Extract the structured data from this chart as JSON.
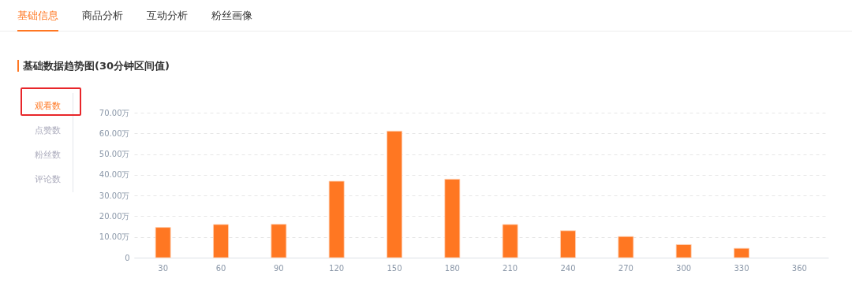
{
  "chart_data": {
    "type": "bar",
    "title": "基础数据趋势图(30分钟区间值)",
    "categories": [
      "30",
      "60",
      "90",
      "120",
      "150",
      "180",
      "210",
      "240",
      "270",
      "300",
      "330",
      "360"
    ],
    "values": [
      14.6,
      16.0,
      16.1,
      36.9,
      61.1,
      37.9,
      16.0,
      13.0,
      10.2,
      6.3,
      4.5,
      null
    ],
    "color": "#ff7722",
    "ylim": [
      0,
      70
    ],
    "yticks": [
      0,
      {
        "value": 10,
        "label": "10.00万"
      },
      {
        "value": 20,
        "label": "20.00万"
      },
      {
        "value": 30,
        "label": "30.00万"
      },
      {
        "value": 40,
        "label": "40.00万"
      },
      {
        "value": 50,
        "label": "50.00万"
      },
      {
        "value": 60,
        "label": "60.00万"
      },
      {
        "value": 70,
        "label": "70.00万"
      }
    ],
    "grid": "y",
    "annotations": [
      "基础信息",
      "商品分析",
      "互动分析",
      "粉丝画像",
      "观看数",
      "点赞数",
      "粉丝数",
      "评论数"
    ]
  }
}
